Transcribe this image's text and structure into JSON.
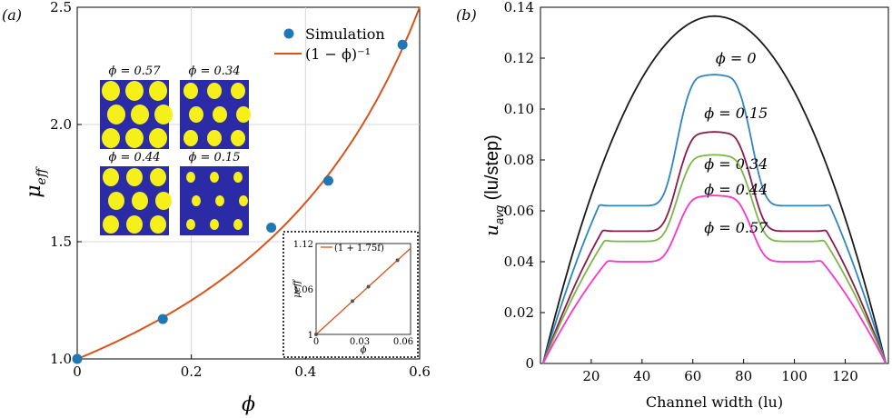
{
  "panel_labels": {
    "a": "(a)",
    "b": "(b)"
  },
  "chart_data": [
    {
      "type": "scatter",
      "xlabel": "ϕ",
      "ylabel": "μ",
      "ylabel_sub": "eff",
      "xlim": [
        0,
        0.6
      ],
      "ylim": [
        1.0,
        2.5
      ],
      "xticks": [
        "0",
        "0.2",
        "0.4",
        "0.6"
      ],
      "yticks": [
        "1.0",
        "1.5",
        "2.0",
        "2.5"
      ],
      "legend": {
        "position": "top-right",
        "simulation": "Simulation",
        "theory": "(1 − ϕ)⁻¹"
      },
      "series": [
        {
          "name": "Simulation",
          "color": "#1f77b4",
          "x": [
            0,
            0.15,
            0.34,
            0.44,
            0.57
          ],
          "y": [
            1.0,
            1.17,
            1.56,
            1.76,
            2.34
          ]
        },
        {
          "name": "(1 − ϕ)⁻¹",
          "color": "#d95319",
          "function": "1/(1-x)"
        }
      ],
      "thumbnails": [
        {
          "label": "ϕ = 0.57"
        },
        {
          "label": "ϕ = 0.34"
        },
        {
          "label": "ϕ = 0.44"
        },
        {
          "label": "ϕ = 0.15"
        }
      ],
      "inset": {
        "legend": "(1 + 1.75f)",
        "xlabel": "ϕ",
        "ylabel": "μeff",
        "xticks": [
          "0",
          "0.03",
          "0.06"
        ],
        "yticks": [
          "1",
          "1.06",
          "1.12"
        ],
        "xlim": [
          0,
          0.065
        ],
        "ylim": [
          1.0,
          1.12
        ],
        "points_x": [
          0,
          0.025,
          0.036,
          0.056
        ],
        "points_y": [
          1.0,
          1.044,
          1.063,
          1.098
        ]
      }
    },
    {
      "type": "line",
      "xlabel": "Channel width (lu)",
      "ylabel": "u",
      "ylabel_sub": "avg",
      "ylabel_unit": "(lu/step)",
      "xlim": [
        0,
        137
      ],
      "ylim": [
        0,
        0.14
      ],
      "xticks": [
        "20",
        "40",
        "60",
        "80",
        "100",
        "120"
      ],
      "yticks": [
        "0",
        "0.02",
        "0.04",
        "0.06",
        "0.08",
        "0.10",
        "0.12",
        "0.14"
      ],
      "series": [
        {
          "name": "ϕ = 0",
          "color": "#1a1a1a",
          "peak": 0.1365,
          "core": 0.0
        },
        {
          "name": "ϕ = 0.15",
          "color": "#2e86c1",
          "peak": 0.1135,
          "core": 0.062
        },
        {
          "name": "ϕ = 0.34",
          "color": "#8b1a4a",
          "peak": 0.091,
          "core": 0.052
        },
        {
          "name": "ϕ = 0.44",
          "color": "#7ab648",
          "peak": 0.082,
          "core": 0.048
        },
        {
          "name": "ϕ = 0.57",
          "color": "#ff33cc",
          "peak": 0.066,
          "core": 0.04
        }
      ]
    }
  ]
}
